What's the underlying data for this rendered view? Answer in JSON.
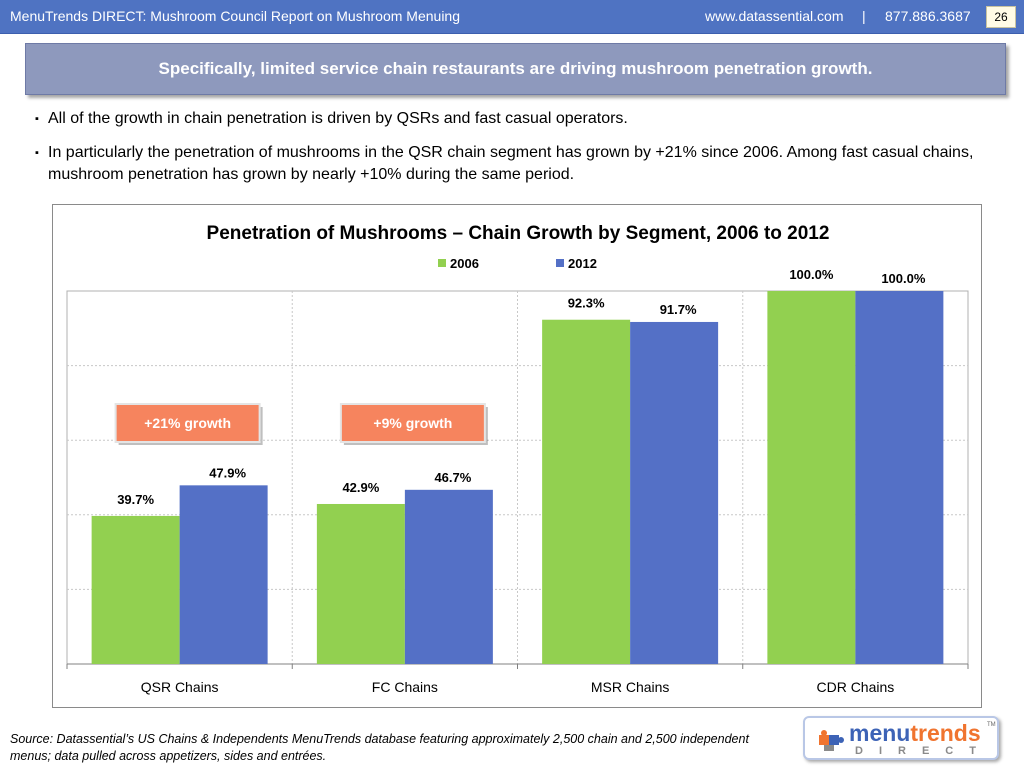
{
  "header": {
    "title": "MenuTrends DIRECT: Mushroom Council Report on Mushroom Menuing",
    "website": "www.datassential.com",
    "separator": "|",
    "phone": "877.886.3687",
    "page_number": "26"
  },
  "headline": "Specifically, limited service chain restaurants are driving mushroom penetration growth.",
  "bullets": [
    "All of the growth in chain penetration is driven by QSRs and fast casual operators.",
    "In particularly the penetration of mushrooms in the QSR chain segment has grown by +21% since 2006.  Among fast casual chains, mushroom penetration has grown by nearly +10% during the same period."
  ],
  "bullet_marker": "▪",
  "chart_data": {
    "type": "bar",
    "title": "Penetration of Mushrooms – Chain Growth by Segment, 2006 to 2012",
    "categories": [
      "QSR Chains",
      "FC Chains",
      "MSR Chains",
      "CDR Chains"
    ],
    "series": [
      {
        "name": "2006",
        "values": [
          39.7,
          42.9,
          92.3,
          100.0
        ],
        "labels": [
          "39.7%",
          "42.9%",
          "92.3%",
          "100.0%"
        ],
        "color": "#92d050"
      },
      {
        "name": "2012",
        "values": [
          47.9,
          46.7,
          91.7,
          100.0
        ],
        "labels": [
          "47.9%",
          "46.7%",
          "91.7%",
          "100.0%"
        ],
        "color": "#5470c6"
      }
    ],
    "ylim": [
      0,
      100
    ],
    "grid": true,
    "legend": "top-center",
    "annotations": [
      {
        "text": "+21% growth",
        "category": "QSR Chains",
        "color": "#f6845e"
      },
      {
        "text": "+9% growth",
        "category": "FC Chains",
        "color": "#f6845e"
      }
    ]
  },
  "source": "Source: Datassential’s US Chains & Independents MenuTrends database featuring approximately 2,500 chain and 2,500 independent menus; data pulled across appetizers, sides and entrées.",
  "logo": {
    "word_part1": "menu",
    "word_part2": "trends",
    "subword": "DIRECT",
    "trademark": "TM"
  }
}
